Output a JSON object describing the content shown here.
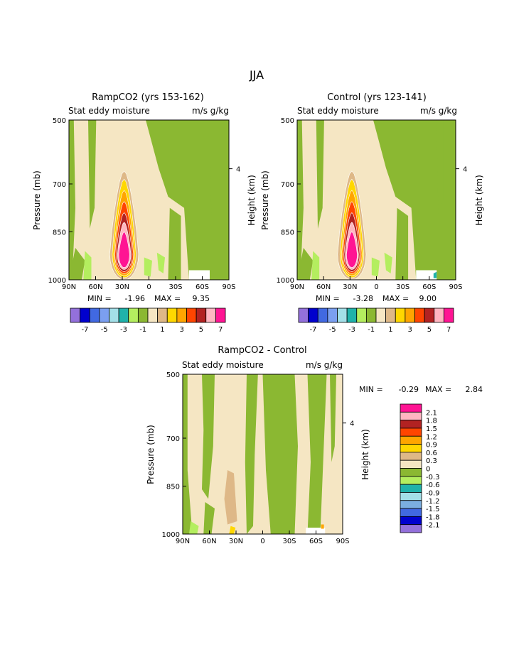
{
  "figure": {
    "title": "JJA"
  },
  "palette": {
    "bar": [
      "#9370db",
      "#0000cd",
      "#4169e1",
      "#7b9ff0",
      "#a3dfe8",
      "#20b2aa",
      "#b4ee5f",
      "#8bb832",
      "#f5e6c3",
      "#deb887",
      "#ffd700",
      "#ffa500",
      "#ff4500",
      "#b22222",
      "#ffb6c1",
      "#ff1493"
    ],
    "bottom": [
      "#9370db",
      "#0000cd",
      "#4169e1",
      "#7baee0",
      "#a3dfe8",
      "#20b2aa",
      "#b4ee5f",
      "#8bb832",
      "#f5e6c3",
      "#deb887",
      "#ffd700",
      "#ffa500",
      "#ff4500",
      "#b22222",
      "#ffb6c1",
      "#ff1493"
    ],
    "outline": "#000000"
  },
  "panels": [
    {
      "id": "ramp",
      "title": "RampCO2 (yrs 153-162)",
      "left_label": "Stat eddy moisture",
      "right_label": "m/s g/kg",
      "ylabel": "Pressure (mb)",
      "y2label": "Height (km)",
      "stats": {
        "min_label": "MIN =",
        "min": "-1.96",
        "max_label": "MAX =",
        "max": "9.35"
      },
      "colorbar": {
        "tick_labels": [
          "-7",
          "-5",
          "-3",
          "-1",
          "1",
          "3",
          "5",
          "7"
        ]
      }
    },
    {
      "id": "control",
      "title": "Control (yrs 123-141)",
      "left_label": "Stat eddy moisture",
      "right_label": "m/s g/kg",
      "ylabel": "Pressure (mb)",
      "y2label": "Height (km)",
      "stats": {
        "min_label": "MIN =",
        "min": "-3.28",
        "max_label": "MAX =",
        "max": "9.00"
      },
      "colorbar": {
        "tick_labels": [
          "-7",
          "-5",
          "-3",
          "-1",
          "1",
          "3",
          "5",
          "7"
        ]
      }
    },
    {
      "id": "diff",
      "title": "RampCO2 - Control",
      "left_label": "Stat eddy moisture",
      "right_label": "m/s g/kg",
      "ylabel": "Pressure (mb)",
      "y2label": "Height (km)",
      "stats": {
        "min_label": "MIN =",
        "min": "-0.29",
        "max_label": "MAX =",
        "max": "2.84"
      },
      "colorbar": {
        "tick_labels": [
          "2.1",
          "1.8",
          "1.5",
          "1.2",
          "0.9",
          "0.6",
          "0.3",
          "0",
          "-0.3",
          "-0.6",
          "-0.9",
          "-1.2",
          "-1.5",
          "-1.8",
          "-2.1"
        ]
      }
    }
  ],
  "chart_data": [
    {
      "type": "heatmap",
      "title": "RampCO2 (yrs 153-162)",
      "variable": "Stat eddy moisture flux (m/s g/kg)",
      "x_ticks": [
        "90N",
        "60N",
        "30N",
        "0",
        "30S",
        "60S",
        "90S"
      ],
      "y_ticks": [
        "500",
        "700",
        "850",
        "1000"
      ],
      "y2_ticks": [
        "4"
      ],
      "xlim": [
        90,
        -90
      ],
      "ylim": [
        1000,
        500
      ],
      "contour_levels": [
        -7,
        -6,
        -5,
        -4,
        -3,
        -2,
        -1,
        0,
        1,
        2,
        3,
        4,
        5,
        6,
        7
      ],
      "maximum_center": {
        "lat": 30,
        "pressure": 940,
        "value": 9.35
      },
      "min": -1.96,
      "max": 9.35
    },
    {
      "type": "heatmap",
      "title": "Control (yrs 123-141)",
      "variable": "Stat eddy moisture flux (m/s g/kg)",
      "x_ticks": [
        "90N",
        "60N",
        "30N",
        "0",
        "30S",
        "60S",
        "90S"
      ],
      "y_ticks": [
        "500",
        "700",
        "850",
        "1000"
      ],
      "y2_ticks": [
        "4"
      ],
      "xlim": [
        90,
        -90
      ],
      "ylim": [
        1000,
        500
      ],
      "contour_levels": [
        -7,
        -6,
        -5,
        -4,
        -3,
        -2,
        -1,
        0,
        1,
        2,
        3,
        4,
        5,
        6,
        7
      ],
      "maximum_center": {
        "lat": 30,
        "pressure": 940,
        "value": 9.0
      },
      "min": -3.28,
      "max": 9.0
    },
    {
      "type": "heatmap",
      "title": "RampCO2 - Control",
      "variable": "Stat eddy moisture flux (m/s g/kg)",
      "x_ticks": [
        "90N",
        "60N",
        "30N",
        "0",
        "30S",
        "60S",
        "90S"
      ],
      "y_ticks": [
        "500",
        "700",
        "850",
        "1000"
      ],
      "y2_ticks": [
        "4"
      ],
      "xlim": [
        90,
        -90
      ],
      "ylim": [
        1000,
        500
      ],
      "contour_levels": [
        -2.1,
        -1.8,
        -1.5,
        -1.2,
        -0.9,
        -0.6,
        -0.3,
        0,
        0.3,
        0.6,
        0.9,
        1.2,
        1.5,
        1.8,
        2.1
      ],
      "maximum_center": {
        "lat": 33,
        "pressure": 990,
        "value": 2.84
      },
      "min": -0.29,
      "max": 2.84
    }
  ]
}
